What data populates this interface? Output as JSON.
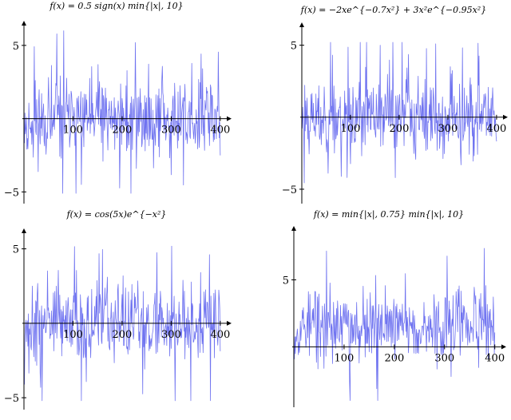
{
  "chart_data": [
    {
      "type": "line",
      "title": "f(x) = 0.5 sign(x) min{|x|, 10}",
      "xlabel": "",
      "ylabel": "",
      "xlim": [
        0,
        410
      ],
      "ylim": [
        -5.8,
        6.3
      ],
      "xticks": [
        100,
        200,
        300,
        400
      ],
      "yticks": [
        -5,
        5
      ],
      "grid": false,
      "series": [
        {
          "color": "#6f73f0",
          "n": 400,
          "seed": 11,
          "scale": 1.1,
          "min": -5.1,
          "max": 6.0
        }
      ]
    },
    {
      "type": "line",
      "title": "f(x) = −2xe^{−0.7x²} + 3x²e^{−0.95x²}",
      "xlabel": "",
      "ylabel": "",
      "xlim": [
        0,
        410
      ],
      "ylim": [
        -6.0,
        6.2
      ],
      "xticks": [
        100,
        200,
        300,
        400
      ],
      "yticks": [
        -5,
        5
      ],
      "grid": false,
      "series": [
        {
          "color": "#6f73f0",
          "n": 400,
          "seed": 23,
          "scale": 1.0,
          "min": -5.4,
          "max": 5.2
        }
      ]
    },
    {
      "type": "line",
      "title": "f(x) = cos(5x)e^{−x²}",
      "xlabel": "",
      "ylabel": "",
      "xlim": [
        0,
        410
      ],
      "ylim": [
        -5.8,
        6.0
      ],
      "xticks": [
        100,
        200,
        300,
        400
      ],
      "yticks": [
        -5,
        5
      ],
      "grid": false,
      "series": [
        {
          "color": "#6f73f0",
          "n": 400,
          "seed": 37,
          "scale": 1.0,
          "min": -5.2,
          "max": 5.6
        }
      ]
    },
    {
      "type": "line",
      "title": "f(x) = min{|x|, 0.75} min{|x|, 10}",
      "xlabel": "",
      "ylabel": "",
      "xlim": [
        0,
        410
      ],
      "ylim": [
        -4.5,
        8.6
      ],
      "xticks": [
        100,
        200,
        300,
        400
      ],
      "yticks": [
        5
      ],
      "grid": false,
      "series": [
        {
          "color": "#6f73f0",
          "n": 400,
          "seed": 53,
          "scale": 1.0,
          "min": -4.0,
          "max": 7.5,
          "bias": 1.6
        }
      ]
    }
  ]
}
